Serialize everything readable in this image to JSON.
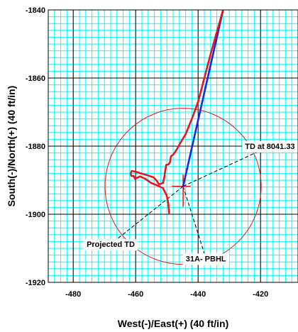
{
  "chart_data": {
    "type": "line",
    "title": "",
    "xlabel": "West(-)/East(+) (40 ft/in)",
    "ylabel": "South(-)/North(+) (40 ft/in)",
    "xlim": [
      -488,
      -408
    ],
    "ylim": [
      -1920,
      -1840
    ],
    "x_ticks": [
      -480,
      -460,
      -440,
      -420
    ],
    "y_ticks": [
      -1840,
      -1860,
      -1880,
      -1900,
      -1920
    ],
    "minor_grid_step": 2,
    "grid": true,
    "colors": {
      "minor_grid": "#00ffff",
      "major_grid": "#000000",
      "actual_path": "#e8141e",
      "plan_path": "#1428e6",
      "target_circle": "#e8141e",
      "leader_lines": "#000000"
    },
    "series": [
      {
        "key": "actual",
        "x": [
          -432,
          -434,
          -436,
          -438,
          -440,
          -442,
          -444,
          -445.8,
          -446.6,
          -447.3,
          -448,
          -448.7,
          -449,
          -449.5,
          -450.2,
          -450.5,
          -450.8,
          -451.2,
          -452.5,
          -453.2,
          -454.2,
          -456,
          -458,
          -460,
          -461.3,
          -461.6,
          -461.4,
          -460.6,
          -460.2,
          -458.6,
          -456.9,
          -455.2,
          -453.2,
          -451.3,
          -450.1,
          -449.6,
          -449.3
        ],
        "y": [
          -1840,
          -1846.5,
          -1853,
          -1860,
          -1867,
          -1872,
          -1876.5,
          -1879.2,
          -1880.6,
          -1881.6,
          -1882.5,
          -1883,
          -1884.7,
          -1885.4,
          -1885.5,
          -1887,
          -1889,
          -1890.8,
          -1891.2,
          -1890.2,
          -1889.2,
          -1888.6,
          -1888.1,
          -1887.5,
          -1887.3,
          -1888.1,
          -1888.7,
          -1888.8,
          -1889.6,
          -1888.9,
          -1889.6,
          -1890.7,
          -1891.5,
          -1892.3,
          -1894.4,
          -1896.6,
          -1899.6
        ]
      },
      {
        "key": "plan",
        "x": [
          -432,
          -444.8
        ],
        "y": [
          -1840,
          -1891.8
        ]
      }
    ],
    "target": {
      "center": [
        -444.8,
        -1891.8
      ],
      "radius": 25
    },
    "crosshair": {
      "center": [
        -444.8,
        -1891.8
      ],
      "x_from": -448.4,
      "x_to": -442.4,
      "y_from": -1888.3,
      "y_to": -1897.8
    },
    "annotations": [
      {
        "key": "td",
        "text": "TD at 8041.33",
        "at": [
          -444.8,
          -1891.8
        ],
        "label": [
          -417,
          -1880
        ]
      },
      {
        "key": "projected",
        "text": "Projected TD",
        "at": [
          -444.8,
          -1891.8
        ],
        "label": [
          -468,
          -1908.8
        ]
      },
      {
        "key": "pbhl",
        "text": "31A- PBHL",
        "at": [
          -444.8,
          -1891.8
        ],
        "label": [
          -437.5,
          -1913
        ]
      }
    ]
  }
}
